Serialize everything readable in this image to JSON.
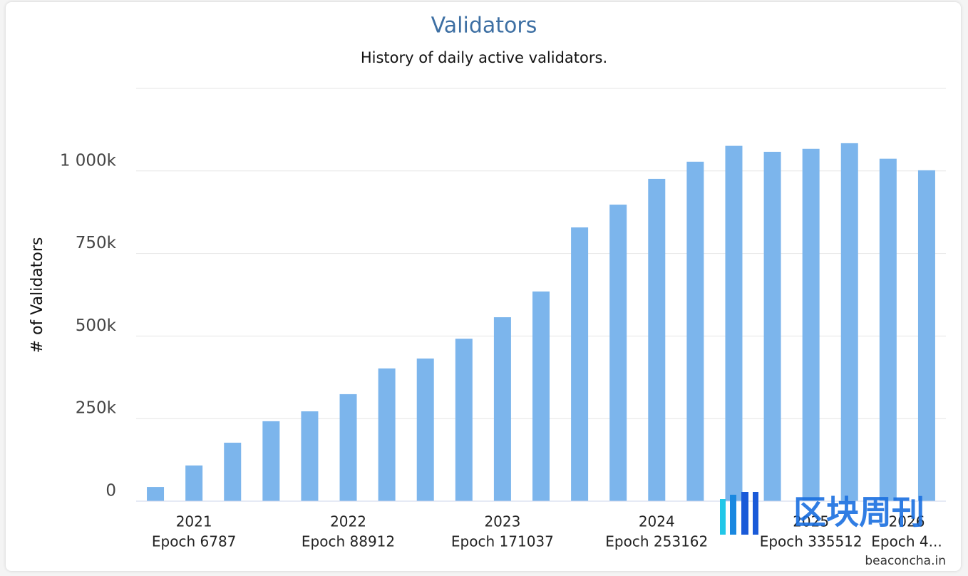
{
  "chart_data": {
    "type": "bar",
    "title": "Validators",
    "subtitle": "History of daily active validators.",
    "y_label": "# of Validators",
    "categories": [
      null,
      "2021",
      null,
      null,
      null,
      "2022",
      null,
      null,
      null,
      "2023",
      null,
      null,
      null,
      "2024",
      null,
      null,
      null,
      "2025",
      null,
      null,
      "2026"
    ],
    "category_sublabels": [
      null,
      "Epoch 6787",
      null,
      null,
      null,
      "Epoch 88912",
      null,
      null,
      null,
      "Epoch 171037",
      null,
      null,
      null,
      "Epoch 253162",
      null,
      null,
      null,
      "Epoch 335512",
      null,
      null,
      "Epoch 4..."
    ],
    "values": [
      43000,
      108000,
      177000,
      242000,
      272000,
      324000,
      402000,
      432000,
      492000,
      557000,
      635000,
      829000,
      898000,
      976000,
      1028000,
      1076000,
      1058000,
      1067000,
      1084000,
      1037000,
      1002000
    ],
    "color": "#7cb5ec",
    "ylim": [
      0,
      1250000
    ],
    "yticks": [
      0,
      {
        "value": 250000,
        "label": "250k"
      },
      {
        "value": 500000,
        "label": "500k"
      },
      {
        "value": 750000,
        "label": "750k"
      },
      {
        "value": 1000000,
        "label": "1 000k"
      }
    ],
    "grid": true,
    "watermark": "区块周刊",
    "source": "beaconcha.in"
  }
}
